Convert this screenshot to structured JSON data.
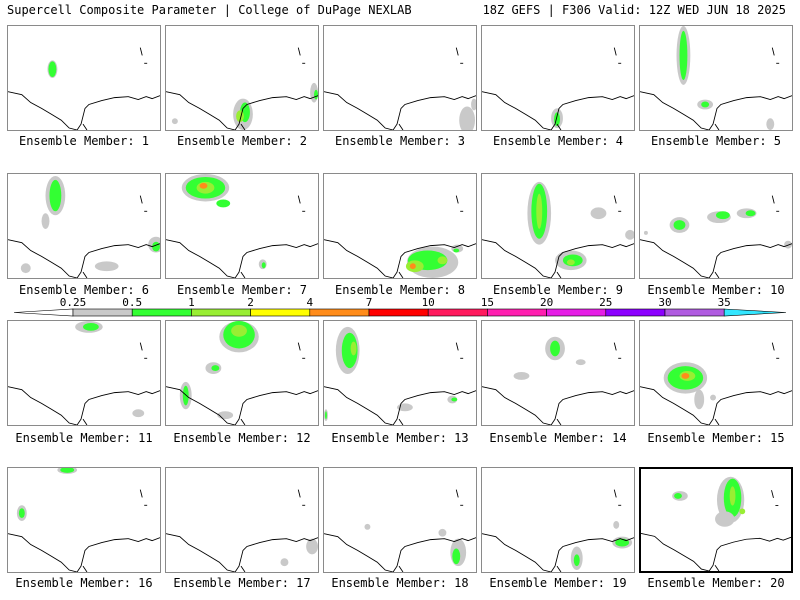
{
  "header": {
    "title": "Supercell Composite Parameter | College of DuPage NEXLAB",
    "run_info": "18Z GEFS | F306 Valid: 12Z WED JUN 18 2025"
  },
  "colorbar": {
    "levels": [
      {
        "label": "0.25",
        "color": "#c9c9c9"
      },
      {
        "label": "0.5",
        "color": "#33ff33"
      },
      {
        "label": "1",
        "color": "#99ee33"
      },
      {
        "label": "2",
        "color": "#ffff00"
      },
      {
        "label": "4",
        "color": "#ff8c1a"
      },
      {
        "label": "7",
        "color": "#ff0000"
      },
      {
        "label": "10",
        "color": "#ff1a5e"
      },
      {
        "label": "15",
        "color": "#ff1fb0"
      },
      {
        "label": "20",
        "color": "#e61ee6"
      },
      {
        "label": "25",
        "color": "#8c00ff"
      },
      {
        "label": "30",
        "color": "#b05be0"
      },
      {
        "label": "35",
        "color": "#33e6ff"
      }
    ]
  },
  "members": [
    {
      "label": "Ensemble Member: 1"
    },
    {
      "label": "Ensemble Member: 2"
    },
    {
      "label": "Ensemble Member: 3"
    },
    {
      "label": "Ensemble Member: 4"
    },
    {
      "label": "Ensemble Member: 5"
    },
    {
      "label": "Ensemble Member: 6"
    },
    {
      "label": "Ensemble Member: 7"
    },
    {
      "label": "Ensemble Member: 8"
    },
    {
      "label": "Ensemble Member: 9"
    },
    {
      "label": "Ensemble Member: 10"
    },
    {
      "label": "Ensemble Member: 11"
    },
    {
      "label": "Ensemble Member: 12"
    },
    {
      "label": "Ensemble Member: 13"
    },
    {
      "label": "Ensemble Member: 14"
    },
    {
      "label": "Ensemble Member: 15"
    },
    {
      "label": "Ensemble Member: 16"
    },
    {
      "label": "Ensemble Member: 17"
    },
    {
      "label": "Ensemble Member: 18"
    },
    {
      "label": "Ensemble Member: 19"
    },
    {
      "label": "Ensemble Member: 20",
      "selected": true
    }
  ]
}
